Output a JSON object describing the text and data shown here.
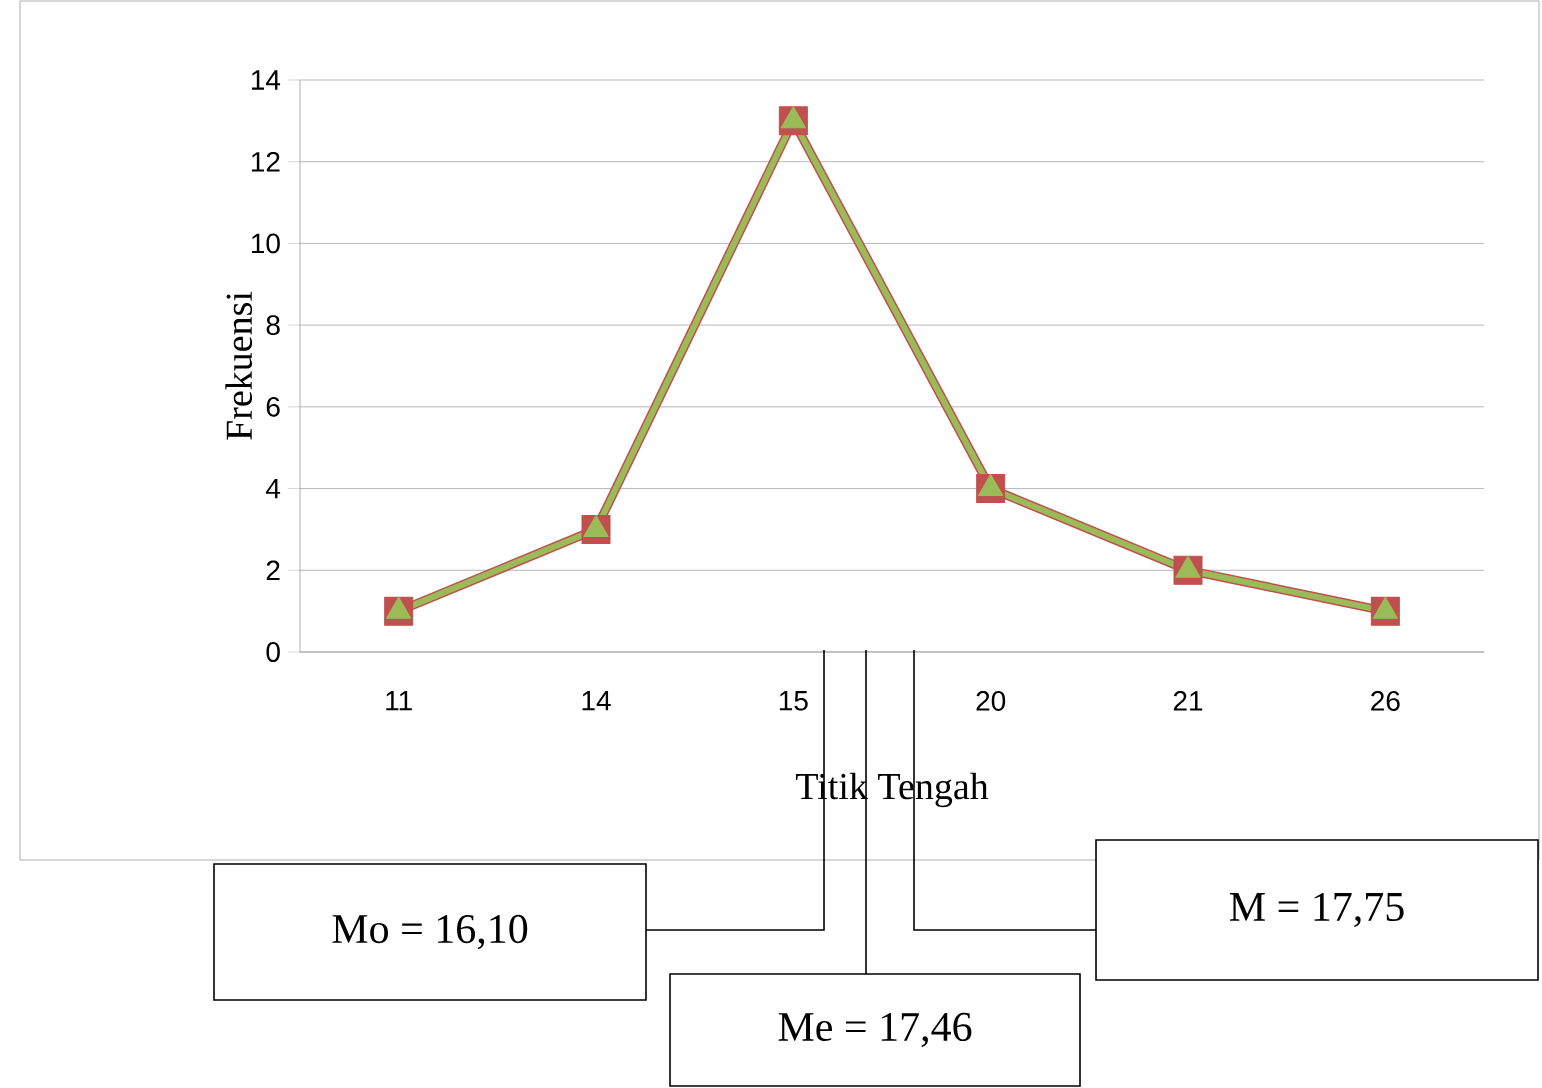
{
  "chart_data": {
    "type": "line",
    "xlabel": "Titik Tengah",
    "ylabel": "Frekuensi",
    "categories": [
      "11",
      "14",
      "15",
      "20",
      "21",
      "26"
    ],
    "series": [
      {
        "color": "#c0504d",
        "marker": "square",
        "values": [
          1,
          3,
          13,
          4,
          2,
          1
        ]
      },
      {
        "color": "#9bbb59",
        "marker": "triangle",
        "values": [
          1,
          3,
          13,
          4,
          2,
          1
        ]
      }
    ],
    "ylim": [
      0,
      14
    ],
    "yticks": [
      0,
      2,
      4,
      6,
      8,
      10,
      12,
      14
    ],
    "grid": "y",
    "line_style": "solid",
    "annotations": [
      "Mo = 16,10",
      "Me = 17,46",
      "M = 17,75"
    ]
  }
}
